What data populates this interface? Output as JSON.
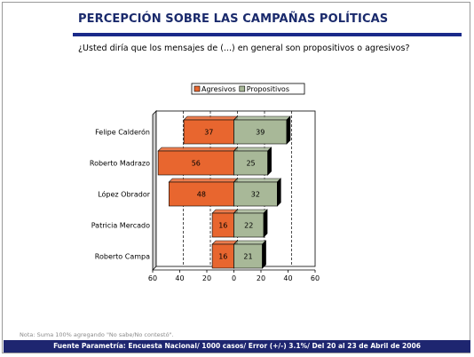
{
  "header": {
    "title": "PERCEPCIÓN SOBRE LAS CAMPAÑAS POLÍTICAS",
    "question": "¿Usted diría que los mensajes de (...) en general son propositivos o agresivos?"
  },
  "note": "Nota: Suma 100% agregando \"No sabe/No contestó\".",
  "footer": "Fuente Parametría: Encuesta Nacional/ 1000 casos/ Error (+/-) 3.1%/ Del 20 al 23 de Abril de 2006",
  "colors": {
    "agresivos": "#e8662f",
    "propositivos": "#a8b898",
    "title": "#1a2a6c",
    "footer_bg": "#1e2670"
  },
  "chart_data": {
    "type": "bar",
    "orientation": "horizontal-diverging",
    "categories": [
      "Felipe Calderón",
      "Roberto Madrazo",
      "López Obrador",
      "Patricia Mercado",
      "Roberto Campa"
    ],
    "series": [
      {
        "name": "Agresivos",
        "values": [
          37,
          56,
          48,
          16,
          16
        ]
      },
      {
        "name": "Propositivos",
        "values": [
          39,
          25,
          32,
          22,
          21
        ]
      }
    ],
    "xlim": [
      -60,
      60
    ],
    "xticks": [
      -60,
      -40,
      -20,
      0,
      20,
      40,
      60
    ],
    "xtick_labels": [
      "60",
      "40",
      "20",
      "0",
      "20",
      "40",
      "60"
    ],
    "grid": "vertical dashed",
    "legend": "top-center"
  }
}
